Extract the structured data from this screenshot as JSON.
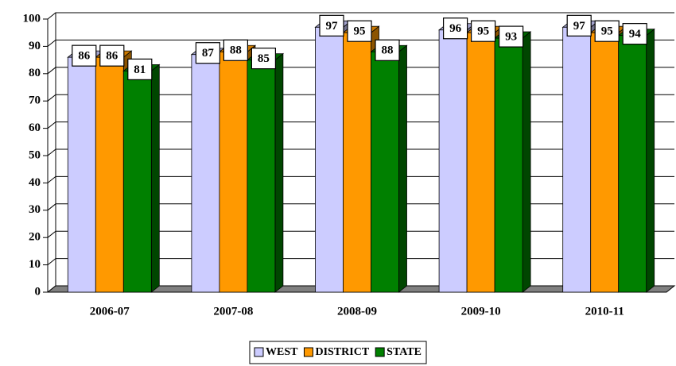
{
  "chart_data": {
    "type": "bar3d",
    "categories": [
      "2006-07",
      "2007-08",
      "2008-09",
      "2009-10",
      "2010-11"
    ],
    "series": [
      {
        "name": "WEST",
        "color": "#ccccff",
        "values": [
          86,
          87,
          97,
          96,
          97
        ]
      },
      {
        "name": "DISTRICT",
        "color": "#ff9900",
        "values": [
          86,
          88,
          95,
          95,
          95
        ]
      },
      {
        "name": "STATE",
        "color": "#008000",
        "values": [
          81,
          85,
          88,
          93,
          94
        ]
      }
    ],
    "ylim": [
      0,
      100
    ],
    "yticks": [
      0,
      10,
      20,
      30,
      40,
      50,
      60,
      70,
      80,
      90,
      100
    ],
    "grid": true,
    "legend": "bottom"
  }
}
